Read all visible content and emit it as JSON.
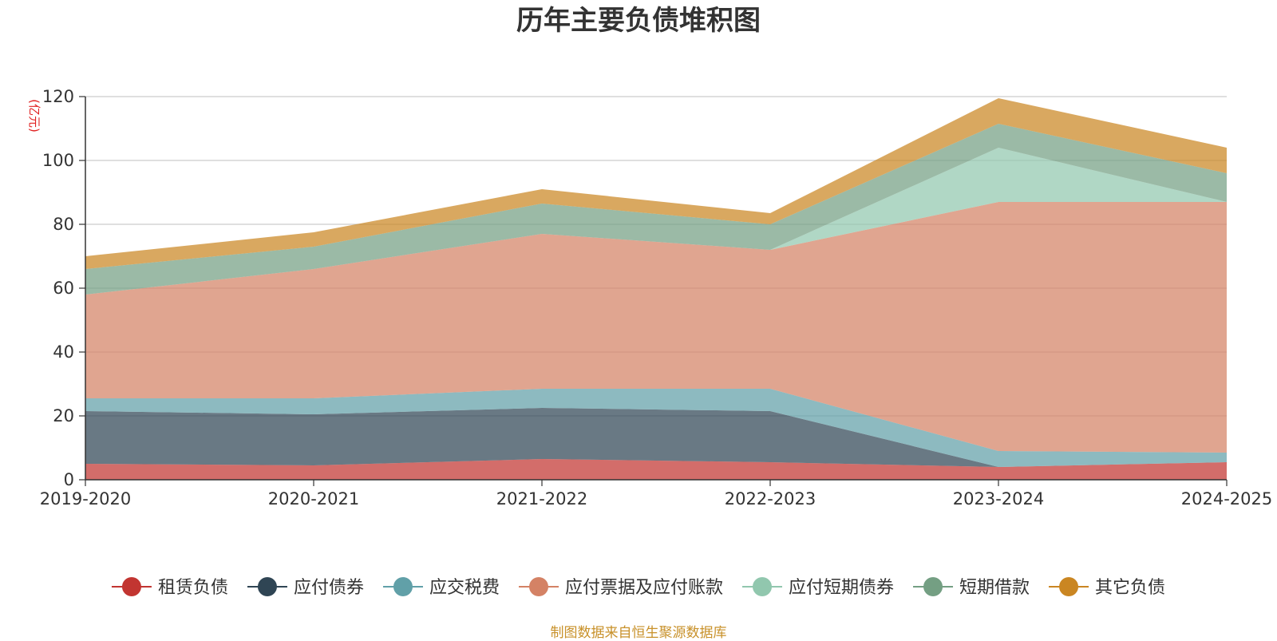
{
  "chart_data": {
    "type": "area",
    "stacked": true,
    "title": "历年主要负债堆积图",
    "unit_label": "(亿元)",
    "categories": [
      "2019-2020",
      "2020-2021",
      "2021-2022",
      "2022-2023",
      "2023-2024",
      "2024-2025"
    ],
    "ylim": [
      0,
      120
    ],
    "y_ticks": [
      0,
      20,
      40,
      60,
      80,
      100,
      120
    ],
    "grid": true,
    "legend_position": "bottom",
    "series": [
      {
        "name": "租赁负债",
        "color": "#c23531",
        "values": [
          5.0,
          4.5,
          6.5,
          5.5,
          4.0,
          5.5
        ]
      },
      {
        "name": "应付债券",
        "color": "#2f4554",
        "values": [
          16.5,
          16.0,
          16.0,
          16.0,
          0.0,
          0.0
        ]
      },
      {
        "name": "应交税费",
        "color": "#61a0a8",
        "values": [
          4.0,
          5.0,
          6.0,
          7.0,
          5.0,
          3.0
        ]
      },
      {
        "name": "应付票据及应付账款",
        "color": "#d48265",
        "values": [
          32.5,
          40.5,
          48.5,
          43.5,
          78.0,
          78.5
        ]
      },
      {
        "name": "应付短期债券",
        "color": "#91c7ae",
        "values": [
          0.0,
          0.0,
          0.0,
          0.0,
          17.0,
          0.0
        ]
      },
      {
        "name": "短期借款",
        "color": "#749f83",
        "values": [
          8.0,
          7.0,
          9.5,
          8.0,
          7.5,
          9.0
        ]
      },
      {
        "name": "其它负债",
        "color": "#ca8622",
        "values": [
          4.0,
          4.5,
          4.5,
          3.5,
          8.0,
          8.0
        ]
      }
    ]
  },
  "footer": "制图数据来自恒生聚源数据库"
}
